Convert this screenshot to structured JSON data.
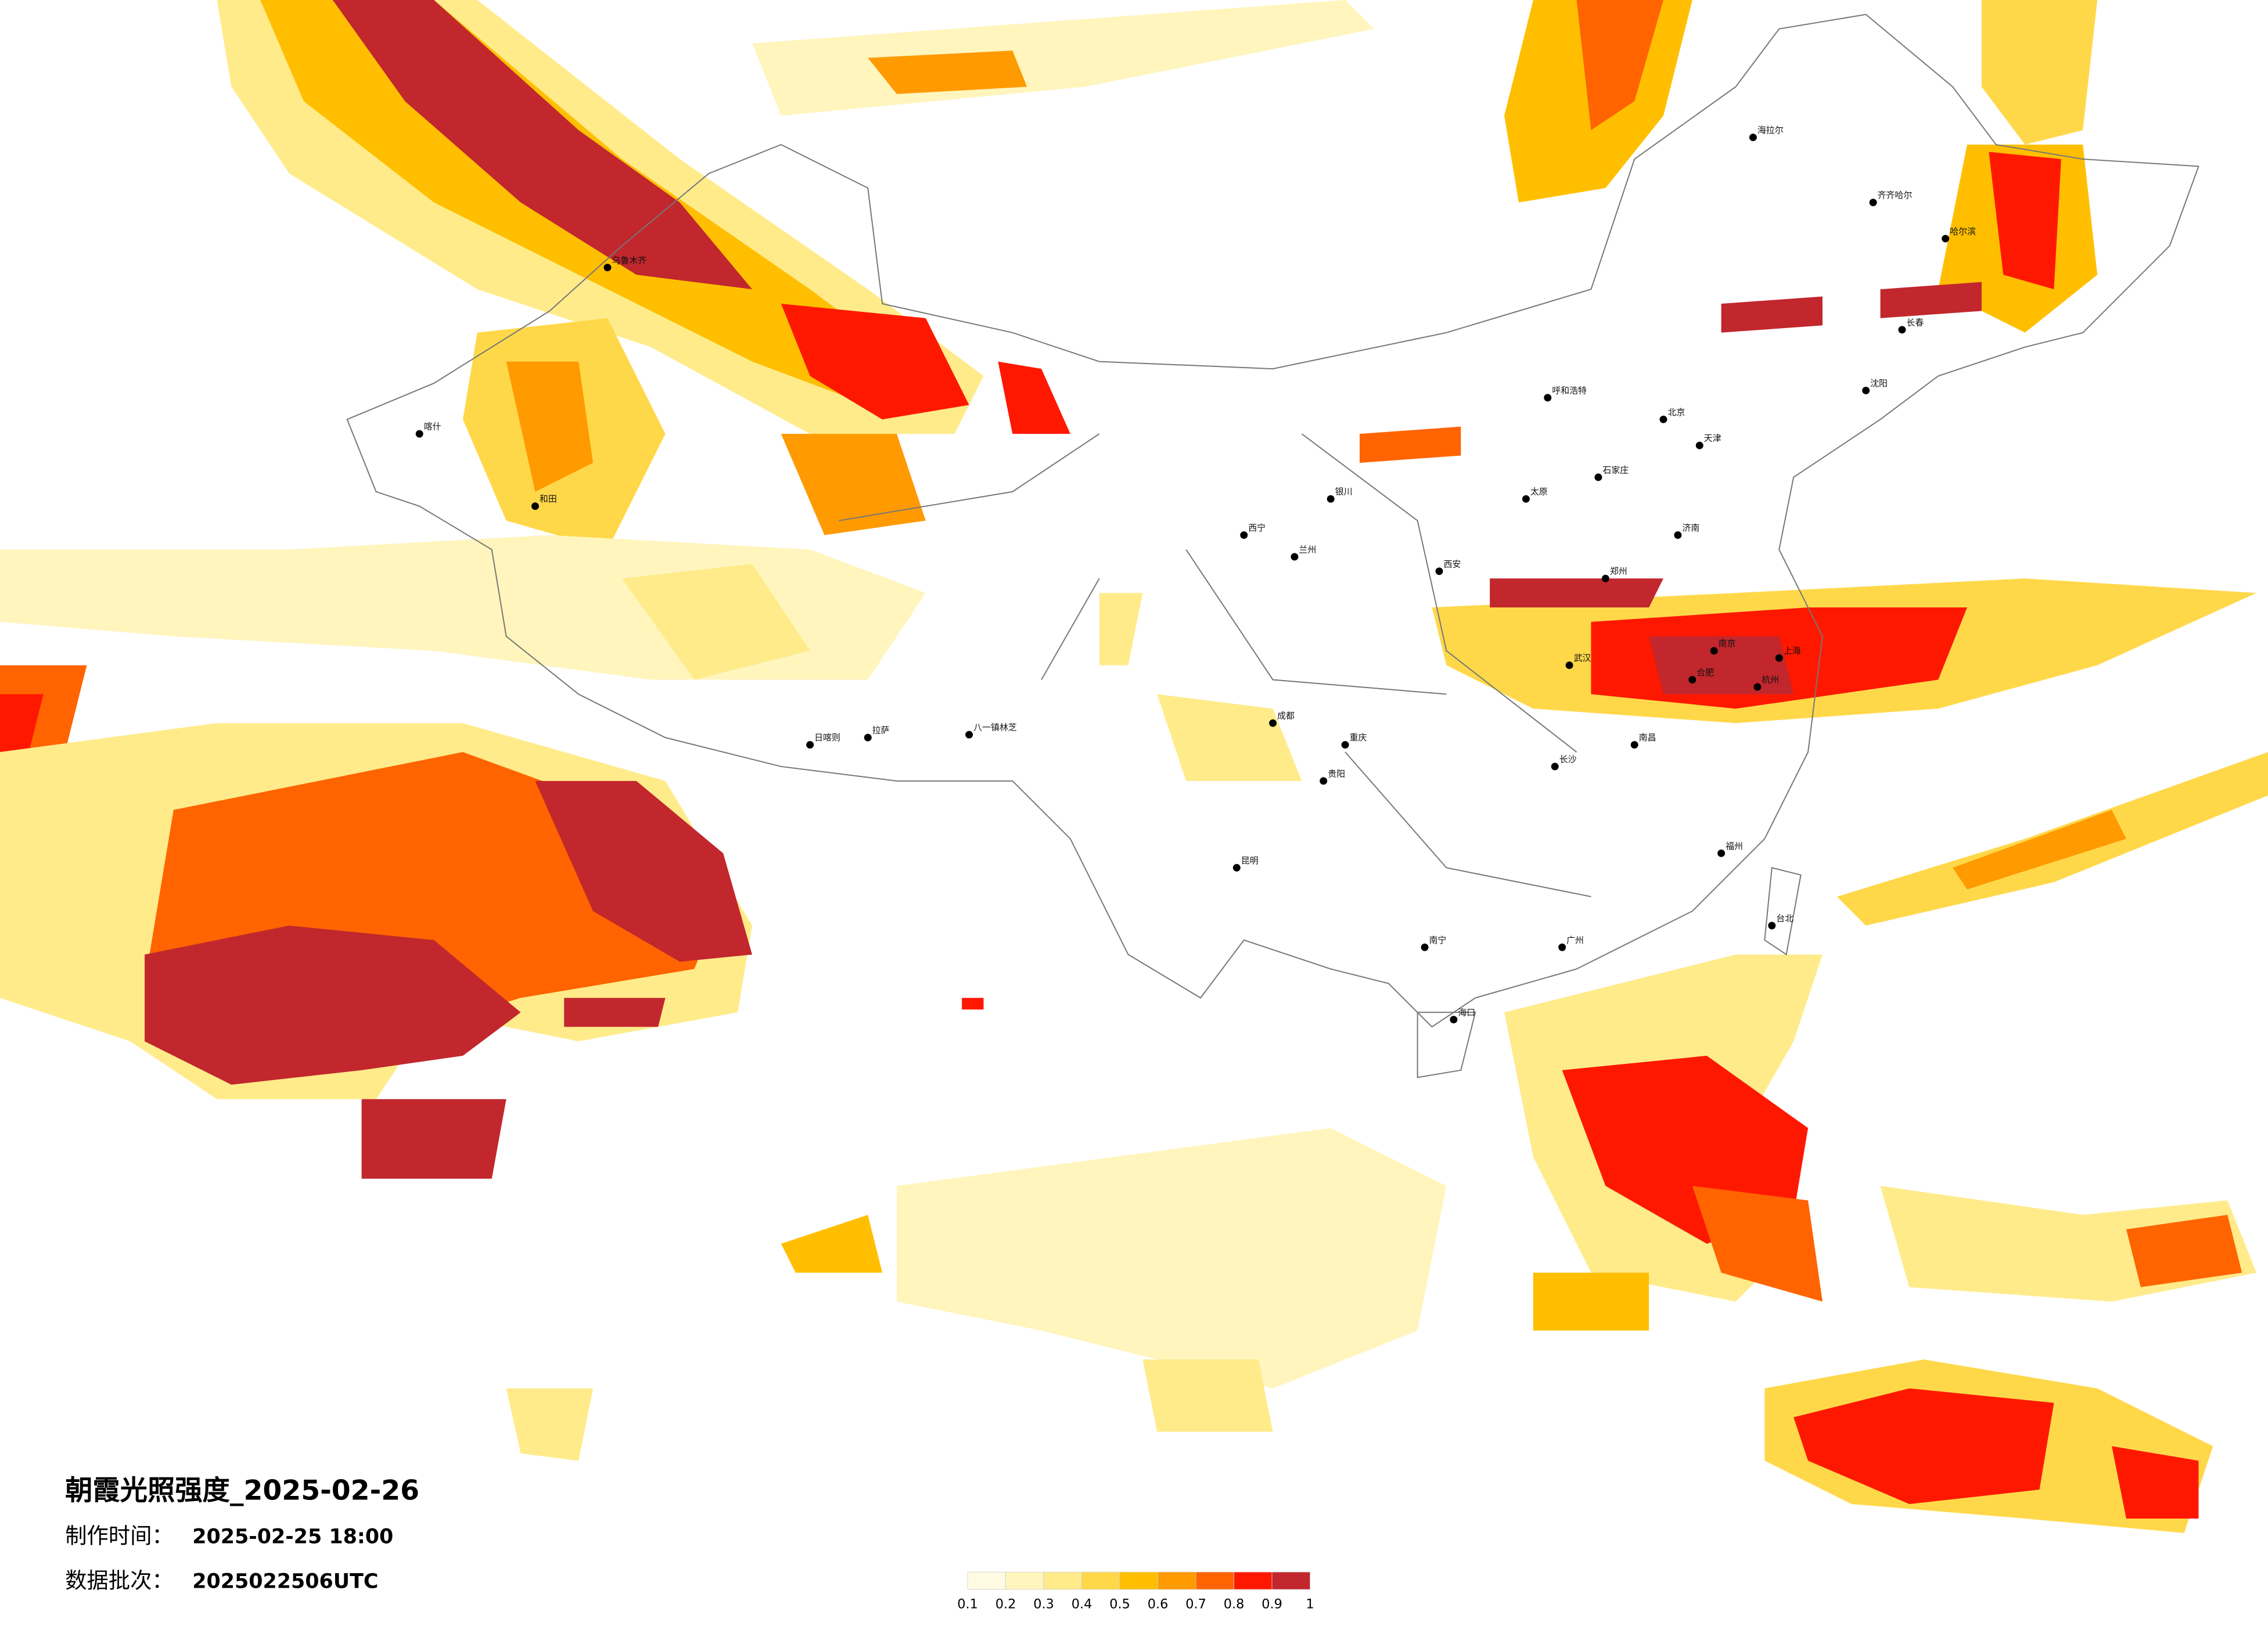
{
  "title": "朝霞光照强度_2025-02-26",
  "meta": [
    {
      "label": "制作时间：",
      "value": "2025-02-25 18:00"
    },
    {
      "label": "数据批次：",
      "value": "2025022506UTC"
    }
  ],
  "legend": {
    "ticks": [
      0.1,
      0.2,
      0.3,
      0.4,
      0.5,
      0.6,
      0.7,
      0.8,
      0.9,
      1
    ],
    "colors": [
      "#fffbe3",
      "#fff5bd",
      "#ffeb8a",
      "#ffd84a",
      "#ffbf00",
      "#ff9a00",
      "#ff6400",
      "#ff1800",
      "#c1272d"
    ]
  },
  "cities": [
    "海拉尔",
    "齐齐哈尔",
    "哈尔滨",
    "长春",
    "沈阳",
    "北京",
    "天津",
    "呼和浩特",
    "石家庄",
    "太原",
    "济南",
    "郑州",
    "西安",
    "兰州",
    "西宁",
    "银川",
    "乌鲁木齐",
    "拉萨",
    "成都",
    "重庆",
    "武汉",
    "南京",
    "上海",
    "杭州",
    "合肥",
    "长沙",
    "南昌",
    "福州",
    "广州",
    "南宁",
    "贵阳",
    "昆明",
    "海口",
    "台北",
    "喀什",
    "和田",
    "日喀则",
    "八一镇林芝"
  ]
}
